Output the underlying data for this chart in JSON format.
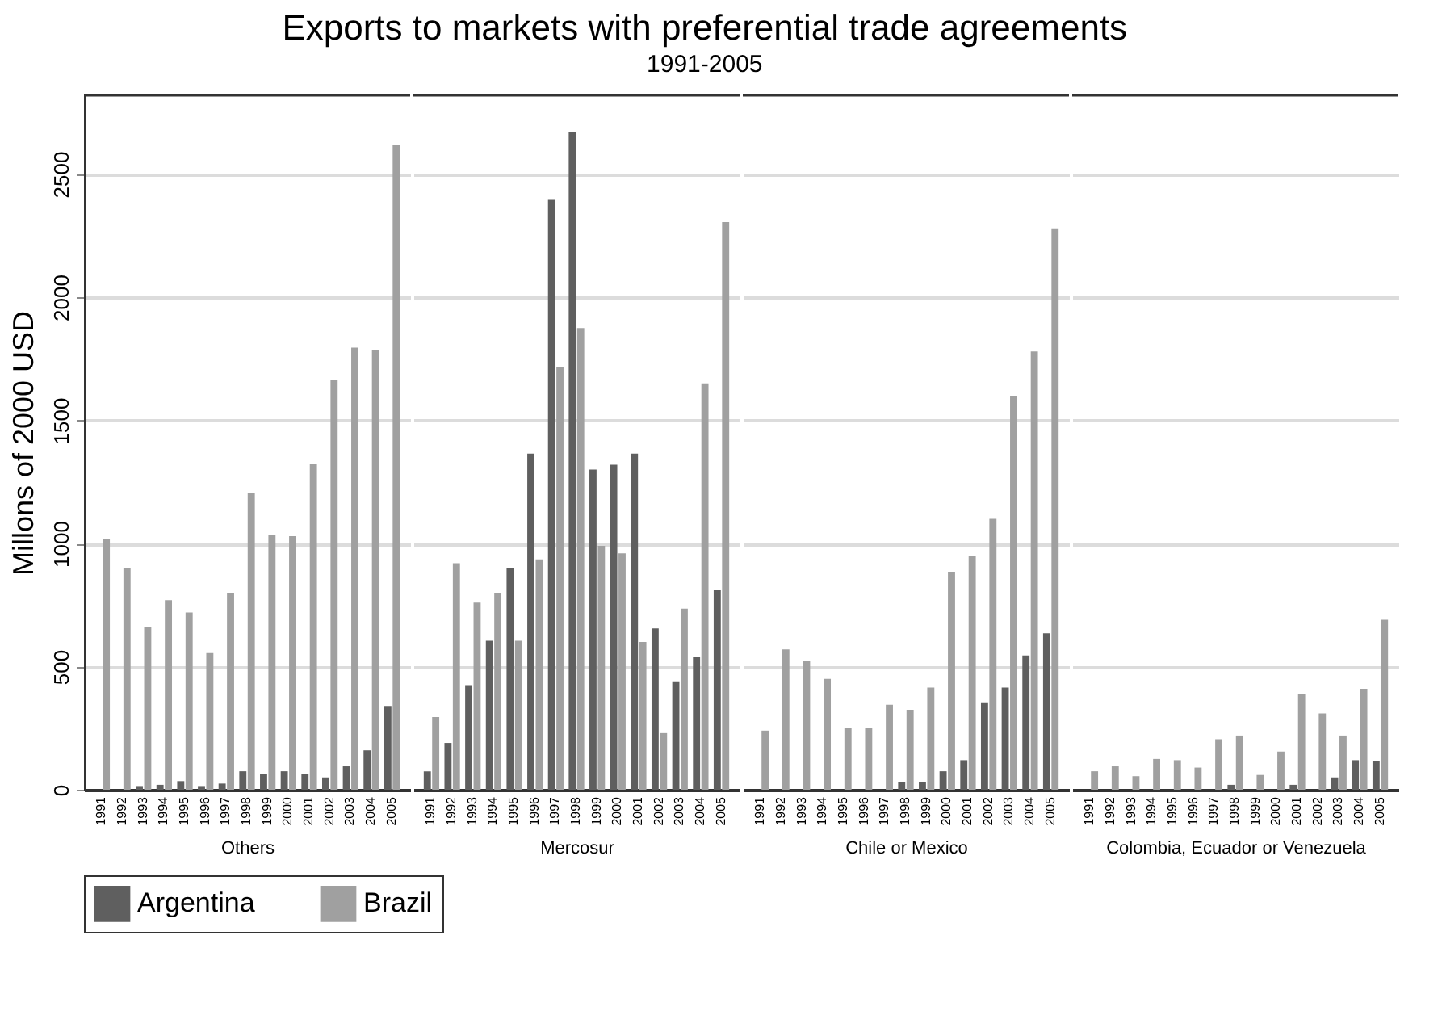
{
  "chart_data": [
    {
      "type": "bar",
      "ylabel": "Millons of 2000 USD",
      "xlabel": "Others",
      "categories": [
        "1991",
        "1992",
        "1993",
        "1994",
        "1995",
        "1996",
        "1997",
        "1998",
        "1999",
        "2000",
        "2001",
        "2002",
        "2003",
        "2004",
        "2005"
      ],
      "series": [
        {
          "name": "Argentina",
          "color": "#5f5f5f",
          "values": [
            0,
            0,
            15,
            20,
            35,
            15,
            25,
            75,
            65,
            75,
            65,
            50,
            95,
            160,
            340
          ]
        },
        {
          "name": "Brazil",
          "color": "#a0a0a0",
          "values": [
            1020,
            900,
            660,
            770,
            720,
            555,
            800,
            1205,
            1035,
            1030,
            1325,
            1665,
            1795,
            1785,
            2620
          ]
        }
      ],
      "ylim": [
        0,
        2820
      ],
      "yticks": [
        0,
        500,
        1000,
        1500,
        2000,
        2500
      ],
      "grid": "y",
      "legend": "bottom"
    },
    {
      "type": "bar",
      "title": "Exports to markets with preferential trade agreements",
      "subtitle": "1991-2005",
      "xlabel": "Mercosur",
      "categories": [
        "1991",
        "1992",
        "1993",
        "1994",
        "1995",
        "1996",
        "1997",
        "1998",
        "1999",
        "2000",
        "2001",
        "2002",
        "2003",
        "2004",
        "2005"
      ],
      "series": [
        {
          "name": "Argentina",
          "color": "#5f5f5f",
          "values": [
            75,
            190,
            425,
            605,
            900,
            1365,
            2395,
            2670,
            1300,
            1320,
            1365,
            655,
            440,
            540,
            810
          ]
        },
        {
          "name": "Brazil",
          "color": "#a0a0a0",
          "values": [
            295,
            920,
            760,
            800,
            605,
            935,
            1715,
            1875,
            990,
            960,
            600,
            230,
            735,
            1650,
            2305
          ]
        }
      ],
      "ylim": [
        0,
        2820
      ],
      "yticks": [
        0,
        500,
        1000,
        1500,
        2000,
        2500
      ],
      "grid": "y",
      "tick_labels": "x"
    },
    {
      "type": "bar",
      "xlabel": "Chile or Mexico",
      "categories": [
        "1991",
        "1992",
        "1993",
        "1994",
        "1995",
        "1996",
        "1997",
        "1998",
        "1999",
        "2000",
        "2001",
        "2002",
        "2003",
        "2004",
        "2005"
      ],
      "series": [
        {
          "name": "Argentina",
          "color": "#5f5f5f",
          "values": [
            0,
            0,
            0,
            0,
            0,
            0,
            null,
            30,
            30,
            75,
            120,
            355,
            415,
            545,
            635
          ]
        },
        {
          "name": "Brazil",
          "color": "#a0a0a0",
          "values": [
            240,
            570,
            525,
            450,
            250,
            250,
            345,
            325,
            415,
            885,
            950,
            1100,
            1600,
            1780,
            2280
          ]
        }
      ],
      "ylim": [
        0,
        2820
      ],
      "yticks": [
        0,
        500,
        1000,
        1500,
        2000,
        2500
      ],
      "grid": "y",
      "tick_labels": "x"
    },
    {
      "type": "bar",
      "xlabel": "Colombia, Ecuador or Venezuela",
      "categories": [
        "1991",
        "1992",
        "1993",
        "1994",
        "1995",
        "1996",
        "1997",
        "1998",
        "1999",
        "2000",
        "2001",
        "2002",
        "2003",
        "2004",
        "2005"
      ],
      "series": [
        {
          "name": "Argentina",
          "color": "#5f5f5f",
          "values": [
            0,
            0,
            0,
            0,
            0,
            0,
            0,
            20,
            0,
            0,
            20,
            null,
            50,
            120,
            115
          ]
        },
        {
          "name": "Brazil",
          "color": "#a0a0a0",
          "values": [
            75,
            95,
            55,
            125,
            120,
            90,
            205,
            220,
            60,
            155,
            390,
            310,
            220,
            410,
            690
          ]
        }
      ],
      "ylim": [
        0,
        2820
      ],
      "yticks": [
        0,
        500,
        1000,
        1500,
        2000,
        2500
      ],
      "grid": "y",
      "tick_labels": "x"
    }
  ]
}
